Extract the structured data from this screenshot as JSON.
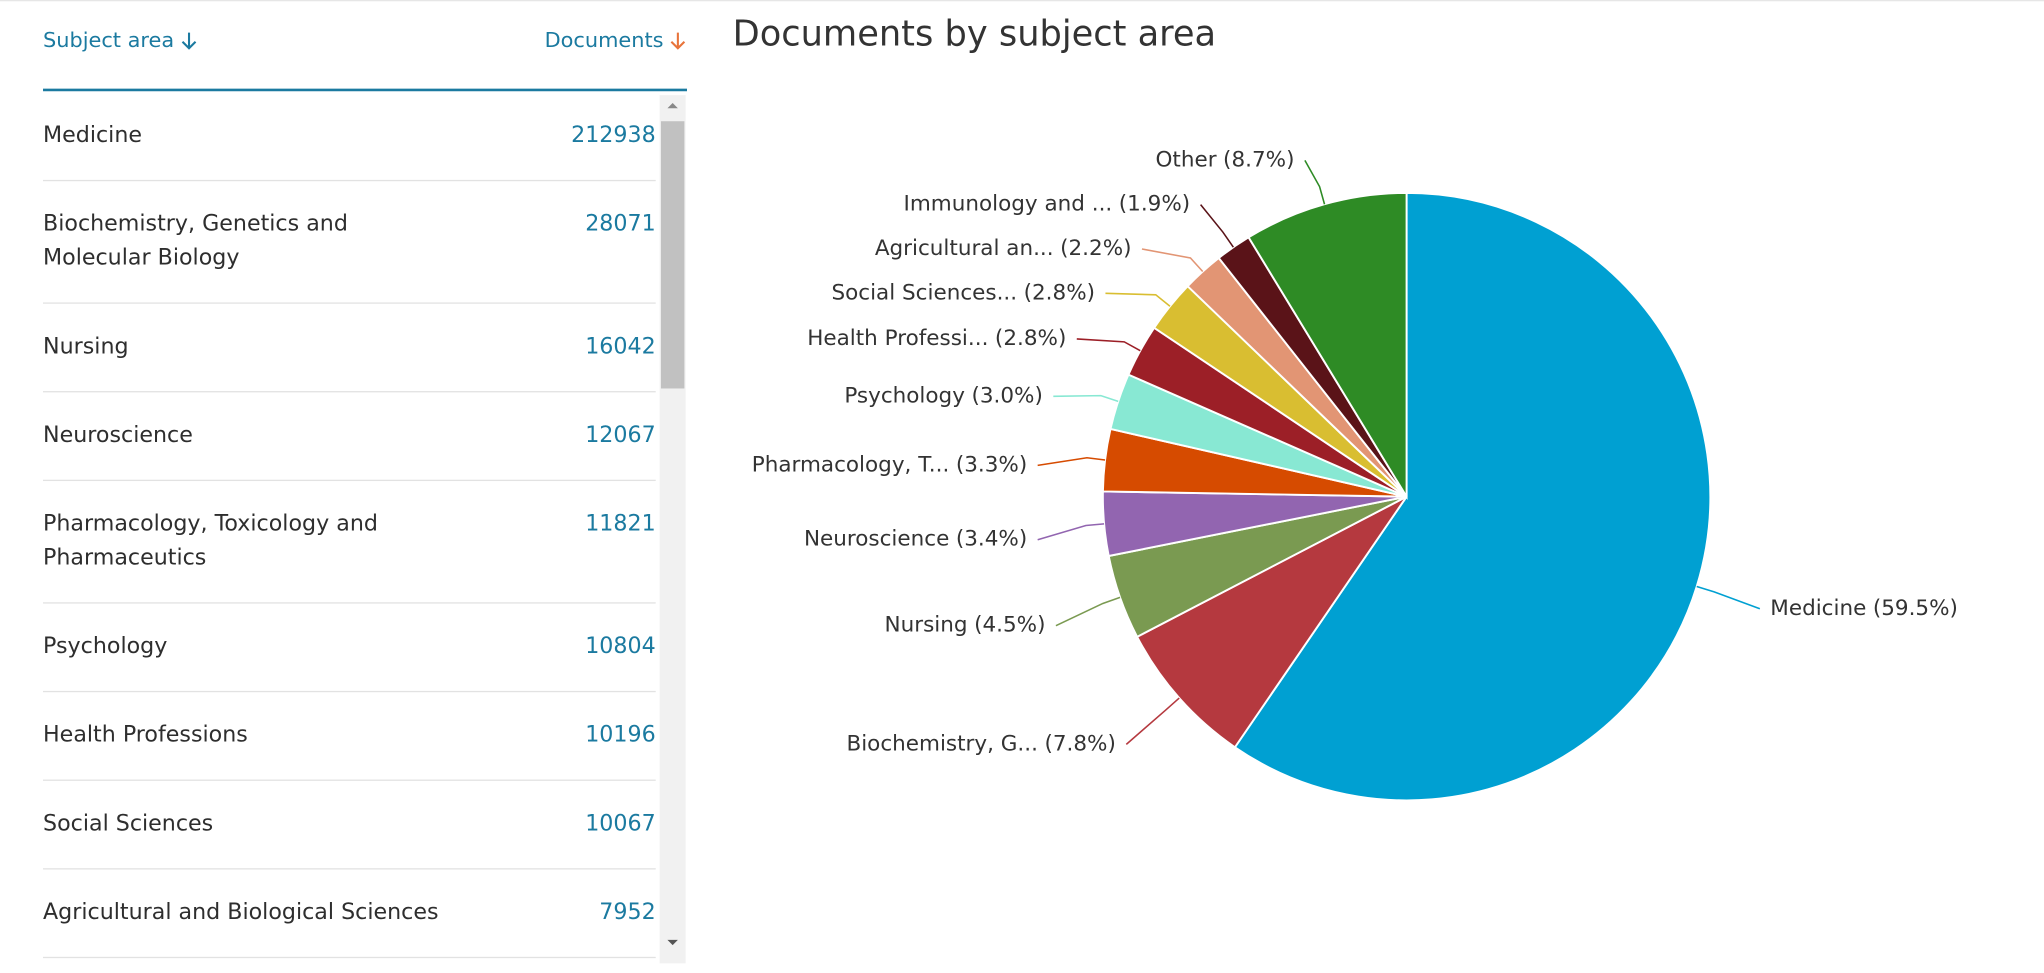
{
  "table": {
    "headers": [
      "Subject area",
      "Documents"
    ],
    "rows": [
      [
        "Medicine",
        212938
      ],
      [
        "Biochemistry, Genetics and Molecular Biology",
        28071
      ],
      [
        "Nursing",
        16042
      ],
      [
        "Neuroscience",
        12067
      ],
      [
        "Pharmacology, Toxicology and Pharmaceutics",
        11821
      ],
      [
        "Psychology",
        10804
      ],
      [
        "Health Professions",
        10196
      ],
      [
        "Social Sciences",
        10067
      ],
      [
        "Agricultural and Biological Sciences",
        7952
      ]
    ]
  },
  "chart_data": {
    "type": "pie",
    "title": "Documents by subject area",
    "categories": [
      "Medicine",
      "Biochemistry, G...",
      "Nursing",
      "Neuroscience",
      "Pharmacology, T...",
      "Psychology",
      "Health Professi...",
      "Social Sciences...",
      "Agricultural an...",
      "Immunology and ...",
      "Other"
    ],
    "values": [
      59.5,
      7.8,
      4.5,
      3.4,
      3.3,
      3.0,
      2.8,
      2.8,
      2.2,
      1.9,
      8.7
    ],
    "value_labels": [
      "(59.5%)",
      "(7.8%)",
      "(4.5%)",
      "(3.4%)",
      "(3.3%)",
      "(3.0%)",
      "(2.8%)",
      "(2.8%)",
      "(2.2%)",
      "(1.9%)",
      "(8.7%)"
    ],
    "colors": [
      "#00a0d2",
      "#b5393f",
      "#7a9a51",
      "#9265b0",
      "#d64b00",
      "#88e8d3",
      "#9c1f27",
      "#d9be31",
      "#e29574",
      "#5a1318",
      "#2e8b25"
    ]
  }
}
